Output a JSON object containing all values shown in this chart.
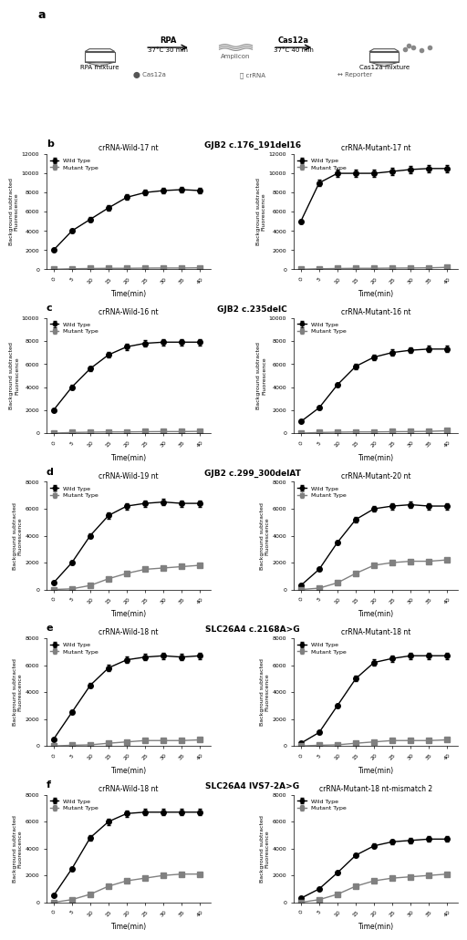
{
  "time_points": [
    0,
    5,
    10,
    15,
    20,
    25,
    30,
    35,
    40
  ],
  "panel_b": {
    "title": "GJB2 c.176_191del16",
    "left_subtitle": "crRNA-Wild-17 nt",
    "right_subtitle": "crRNA-Mutant-17 nt",
    "left_wild": [
      2000,
      4000,
      5200,
      6400,
      7500,
      8000,
      8200,
      8300,
      8200
    ],
    "left_mutant": [
      0,
      50,
      80,
      100,
      100,
      120,
      130,
      130,
      150
    ],
    "right_wild": [
      5000,
      9000,
      10000,
      10000,
      10000,
      10200,
      10400,
      10500,
      10500
    ],
    "right_mutant": [
      0,
      50,
      80,
      100,
      100,
      120,
      130,
      150,
      200
    ],
    "ylim_left": [
      0,
      12000
    ],
    "ylim_right": [
      0,
      12000
    ],
    "yticks_left": [
      0,
      2000,
      4000,
      6000,
      8000,
      10000,
      12000
    ],
    "yticks_right": [
      0,
      2000,
      4000,
      6000,
      8000,
      10000,
      12000
    ]
  },
  "panel_c": {
    "title": "GJB2 c.235delC",
    "left_subtitle": "crRNA-Wild-16 nt",
    "right_subtitle": "crRNA-Mutant-16 nt",
    "left_wild": [
      2000,
      4000,
      5600,
      6800,
      7500,
      7800,
      7900,
      7900,
      7900
    ],
    "left_mutant": [
      0,
      50,
      80,
      100,
      100,
      120,
      130,
      130,
      150
    ],
    "right_wild": [
      1000,
      2200,
      4200,
      5800,
      6600,
      7000,
      7200,
      7300,
      7300
    ],
    "right_mutant": [
      0,
      50,
      80,
      100,
      100,
      120,
      130,
      150,
      200
    ],
    "ylim_left": [
      0,
      10000
    ],
    "ylim_right": [
      0,
      10000
    ],
    "yticks_left": [
      0,
      2000,
      4000,
      6000,
      8000,
      10000
    ],
    "yticks_right": [
      0,
      2000,
      4000,
      6000,
      8000,
      10000
    ]
  },
  "panel_d": {
    "title": "GJB2 c.299_300delAT",
    "left_subtitle": "crRNA-Wild-19 nt",
    "right_subtitle": "crRNA-Mutant-20 nt",
    "left_wild": [
      500,
      2000,
      4000,
      5500,
      6200,
      6400,
      6500,
      6400,
      6400
    ],
    "left_mutant": [
      0,
      50,
      300,
      800,
      1200,
      1500,
      1600,
      1700,
      1800
    ],
    "right_wild": [
      300,
      1500,
      3500,
      5200,
      6000,
      6200,
      6300,
      6200,
      6200
    ],
    "right_mutant": [
      0,
      100,
      500,
      1200,
      1800,
      2000,
      2100,
      2100,
      2200
    ],
    "ylim_left": [
      0,
      8000
    ],
    "ylim_right": [
      0,
      8000
    ],
    "yticks_left": [
      0,
      2000,
      4000,
      6000,
      8000
    ],
    "yticks_right": [
      0,
      2000,
      4000,
      6000,
      8000
    ]
  },
  "panel_e": {
    "title": "SLC26A4 c.2168A>G",
    "left_subtitle": "crRNA-Wild-18 nt",
    "right_subtitle": "crRNA-Mutant-18 nt",
    "left_wild": [
      500,
      2500,
      4500,
      5800,
      6400,
      6600,
      6700,
      6600,
      6700
    ],
    "left_mutant": [
      0,
      50,
      80,
      200,
      300,
      400,
      400,
      400,
      450
    ],
    "right_wild": [
      200,
      1000,
      3000,
      5000,
      6200,
      6500,
      6700,
      6700,
      6700
    ],
    "right_mutant": [
      0,
      50,
      80,
      200,
      300,
      400,
      400,
      400,
      450
    ],
    "ylim_left": [
      0,
      8000
    ],
    "ylim_right": [
      0,
      8000
    ],
    "yticks_left": [
      0,
      2000,
      4000,
      6000,
      8000
    ],
    "yticks_right": [
      0,
      2000,
      4000,
      6000,
      8000
    ]
  },
  "panel_f": {
    "title": "SLC26A4 IVS7-2A>G",
    "left_subtitle": "crRNA-Wild-18 nt",
    "right_subtitle": "crRNA-Mutant-18 nt-mismatch 2",
    "left_wild": [
      500,
      2500,
      4800,
      6000,
      6600,
      6700,
      6700,
      6700,
      6700
    ],
    "left_mutant": [
      0,
      200,
      600,
      1200,
      1600,
      1800,
      2000,
      2100,
      2100
    ],
    "right_wild": [
      300,
      1000,
      2200,
      3500,
      4200,
      4500,
      4600,
      4700,
      4700
    ],
    "right_mutant": [
      0,
      200,
      600,
      1200,
      1600,
      1800,
      1900,
      2000,
      2100
    ],
    "ylim_left": [
      0,
      8000
    ],
    "ylim_right": [
      0,
      8000
    ],
    "yticks_left": [
      0,
      2000,
      4000,
      6000,
      8000
    ],
    "yticks_right": [
      0,
      2000,
      4000,
      6000,
      8000
    ]
  },
  "wild_color": "#000000",
  "mutant_color": "#808080",
  "marker_size": 4,
  "line_width": 1.0,
  "ylabel": "Background subtracted\nFluorescence",
  "xlabel": "Time(min)"
}
